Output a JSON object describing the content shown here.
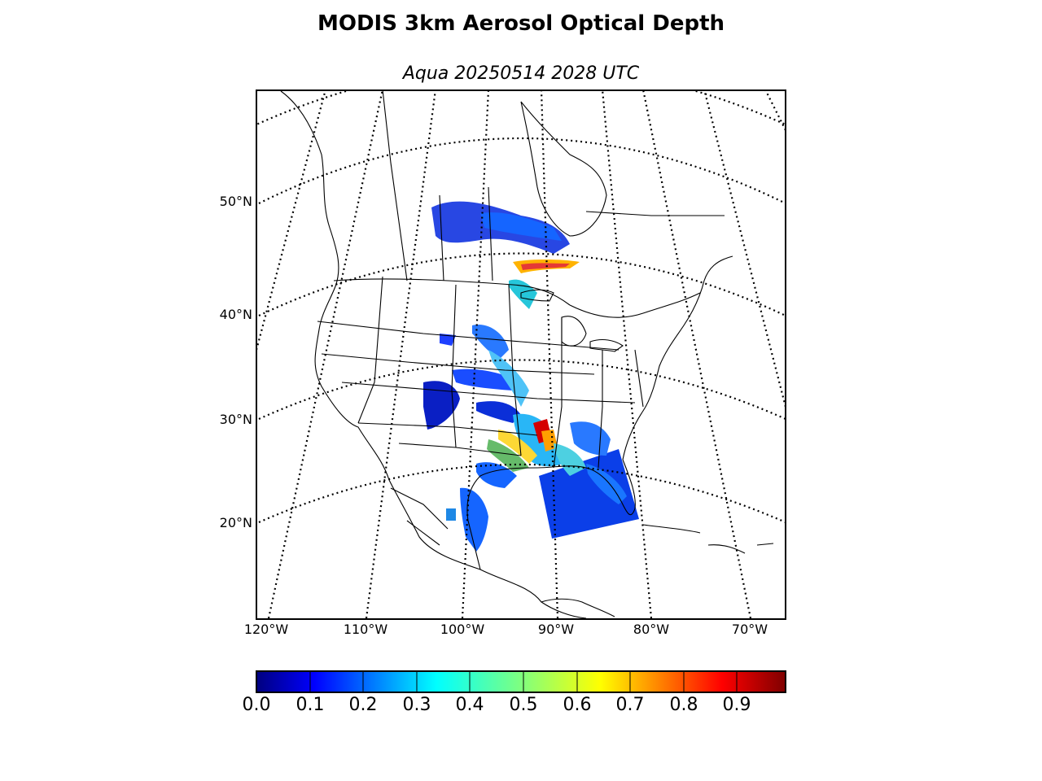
{
  "title": "MODIS 3km Aerosol Optical Depth",
  "subtitle": "Aqua 20250514 2028 UTC",
  "latitude_labels": [
    "50°N",
    "40°N",
    "30°N",
    "20°N"
  ],
  "longitude_labels": [
    "120°W",
    "110°W",
    "100°W",
    "90°W",
    "80°W",
    "70°W"
  ],
  "colorbar": {
    "tick_labels": [
      "0.0",
      "0.1",
      "0.2",
      "0.3",
      "0.4",
      "0.5",
      "0.6",
      "0.7",
      "0.8",
      "0.9"
    ],
    "range": [
      0.0,
      1.0
    ],
    "colormap": "jet",
    "colors": [
      "#00007f",
      "#0000ff",
      "#007fff",
      "#00ffff",
      "#7fff7f",
      "#ffff00",
      "#ff7f00",
      "#ff0000",
      "#7f0000"
    ]
  },
  "colors": {
    "land_line": "#000000",
    "ocean": "#ffffff",
    "aod_low": "#0b2fd8",
    "aod_mid": "#29b6f6",
    "aod_high": "#d40000"
  }
}
